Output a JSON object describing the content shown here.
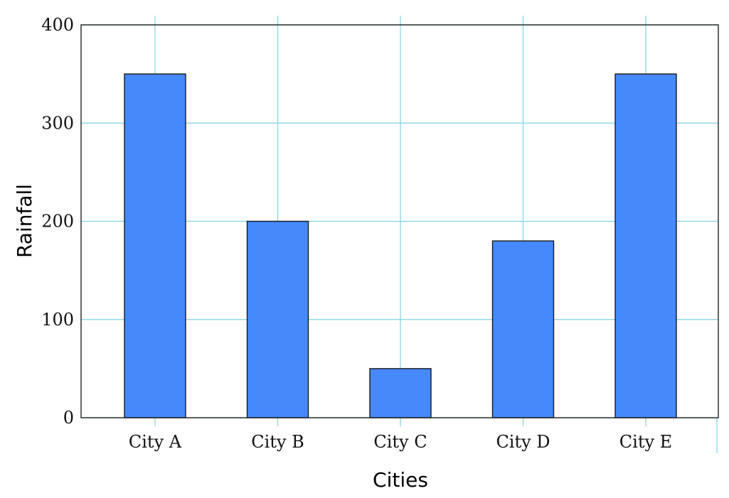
{
  "chart_data": {
    "type": "bar",
    "title": "",
    "xlabel": "Cities",
    "ylabel": "Rainfall",
    "categories": [
      "City A",
      "City B",
      "City C",
      "City D",
      "City E"
    ],
    "values": [
      350,
      200,
      50,
      180,
      350
    ],
    "ylim": [
      0,
      400
    ],
    "yticks": [
      0,
      100,
      200,
      300,
      400
    ],
    "grid": true,
    "bar_color": "#4589fb",
    "grid_color": "#7fd3e6"
  }
}
